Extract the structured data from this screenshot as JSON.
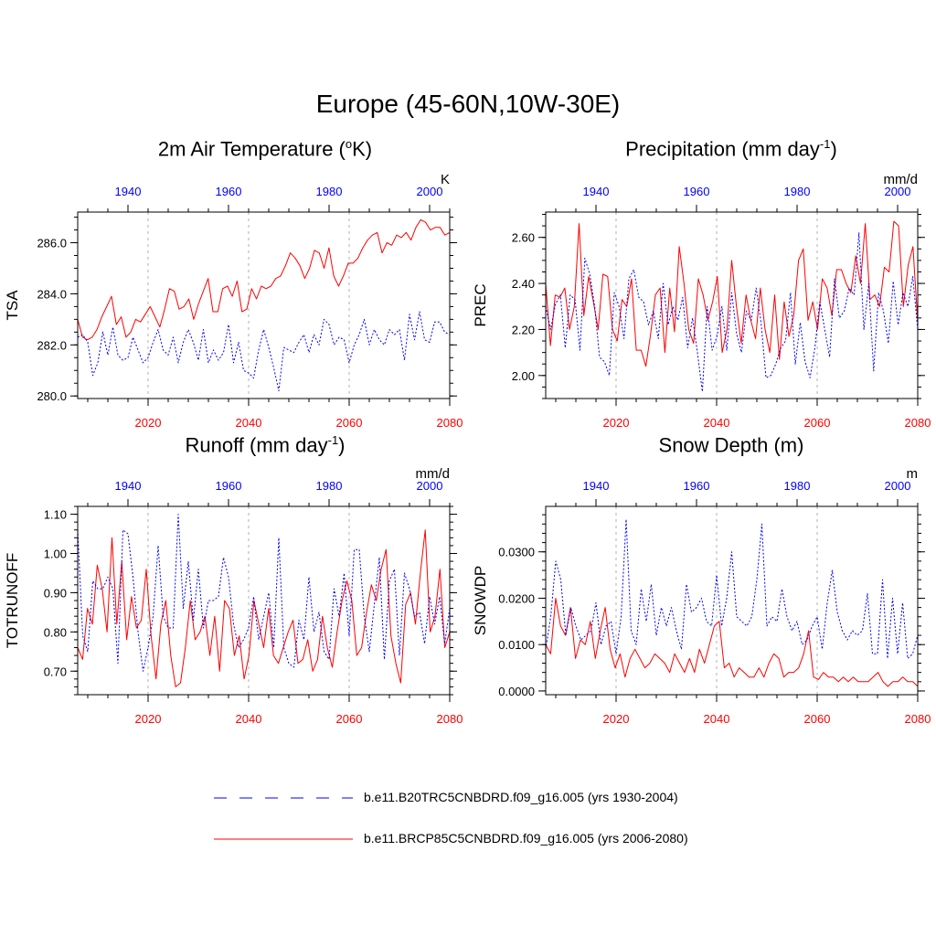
{
  "title": "Europe (45-60N,10W-30E)",
  "colors": {
    "historical": "#0000ff",
    "future": "#ff0000",
    "grid": "#b0b0b0"
  },
  "legend": [
    {
      "series": "historical",
      "label": "b.e11.B20TRC5CNBDRD.f09_g16.005 (yrs 1930-2004)"
    },
    {
      "series": "future",
      "label": "b.e11.BRCP85C5CNBDRD.f09_g16.005 (yrs 2006-2080)"
    }
  ],
  "chart_data": [
    {
      "type": "line",
      "id": "tsa",
      "title_main": "2m Air Temperature (",
      "title_sup": "o",
      "title_tail": "K)",
      "ylabel": "TSA",
      "units": "K",
      "ylim": [
        279.9,
        287.2
      ],
      "yticks": [
        280.0,
        282.0,
        284.0,
        286.0
      ],
      "ytick_labels": [
        "280.0",
        "282.0",
        "284.0",
        "286.0"
      ],
      "yminor": 0.5,
      "x_bottom": {
        "range": [
          2006,
          2080
        ],
        "ticks": [
          2020,
          2040,
          2060,
          2080
        ]
      },
      "x_top": {
        "range": [
          1930,
          2004
        ],
        "ticks": [
          1940,
          1960,
          1980,
          2000
        ]
      },
      "series": [
        {
          "name": "b.e11.BRCP85C5CNBDRD.f09_g16.005",
          "style": "future",
          "values": [
            283.0,
            282.3,
            282.2,
            282.3,
            282.6,
            283.1,
            283.5,
            283.9,
            282.8,
            283.1,
            282.3,
            282.5,
            283.0,
            282.9,
            283.2,
            283.5,
            283.1,
            282.7,
            283.4,
            284.2,
            284.1,
            283.4,
            283.5,
            283.8,
            283.0,
            283.6,
            284.1,
            284.6,
            283.3,
            283.3,
            284.2,
            284.3,
            283.9,
            284.5,
            283.3,
            283.4,
            284.2,
            283.8,
            284.3,
            284.2,
            284.3,
            284.6,
            284.7,
            285.1,
            285.6,
            285.4,
            285.1,
            284.6,
            285.0,
            285.7,
            285.6,
            285.0,
            285.8,
            284.7,
            284.3,
            284.7,
            285.2,
            285.2,
            285.4,
            285.8,
            286.1,
            286.3,
            286.4,
            285.6,
            286.0,
            285.9,
            286.3,
            286.2,
            286.4,
            286.1,
            286.6,
            286.9,
            286.8,
            286.5,
            286.6,
            286.6,
            286.3,
            286.4
          ]
        },
        {
          "name": "b.e11.B20TRC5CNBDRD.f09_g16.005",
          "style": "historical",
          "values": [
            282.3,
            282.4,
            282.1,
            280.8,
            281.3,
            282.5,
            281.6,
            282.7,
            281.6,
            281.4,
            281.5,
            282.3,
            281.8,
            281.3,
            281.5,
            282.1,
            282.6,
            281.8,
            281.6,
            282.3,
            281.3,
            282.1,
            282.6,
            282.1,
            281.4,
            282.6,
            281.3,
            281.8,
            281.4,
            281.7,
            282.8,
            281.3,
            282.1,
            281.0,
            280.9,
            280.7,
            281.8,
            282.6,
            281.9,
            281.1,
            280.2,
            281.9,
            281.8,
            281.7,
            282.1,
            282.4,
            281.7,
            282.4,
            282.0,
            283.0,
            282.8,
            282.0,
            282.3,
            282.2,
            281.3,
            282.0,
            282.4,
            283.0,
            282.0,
            282.6,
            282.2,
            282.0,
            282.6,
            282.4,
            282.6,
            281.4,
            283.2,
            282.2,
            283.3,
            282.2,
            282.1,
            282.9,
            282.9,
            282.5,
            282.4
          ]
        }
      ]
    },
    {
      "type": "line",
      "id": "prec",
      "title_main": "Precipitation (mm day",
      "title_sup": "-1",
      "title_tail": ")",
      "ylabel": "PREC",
      "units": "mm/d",
      "ylim": [
        1.9,
        2.71
      ],
      "yticks": [
        2.0,
        2.2,
        2.4,
        2.6
      ],
      "ytick_labels": [
        "2.00",
        "2.20",
        "2.40",
        "2.60"
      ],
      "yminor": 0.05,
      "x_bottom": {
        "range": [
          2006,
          2080
        ],
        "ticks": [
          2020,
          2040,
          2060,
          2080
        ]
      },
      "x_top": {
        "range": [
          1930,
          2004
        ],
        "ticks": [
          1940,
          1960,
          1980,
          2000
        ]
      },
      "series": [
        {
          "name": "b.e11.BRCP85C5CNBDRD.f09_g16.005",
          "style": "future",
          "values": [
            2.4,
            2.13,
            2.35,
            2.34,
            2.38,
            2.2,
            2.3,
            2.66,
            2.26,
            2.43,
            2.32,
            2.2,
            2.44,
            2.43,
            2.2,
            2.15,
            2.33,
            2.3,
            2.42,
            2.11,
            2.11,
            2.04,
            2.18,
            2.35,
            2.38,
            2.1,
            2.38,
            2.19,
            2.56,
            2.4,
            2.2,
            2.14,
            2.42,
            2.35,
            2.24,
            2.32,
            2.43,
            2.1,
            2.2,
            2.5,
            2.3,
            2.14,
            2.35,
            2.24,
            2.16,
            2.38,
            2.2,
            2.1,
            2.35,
            2.07,
            2.32,
            2.17,
            2.26,
            2.5,
            2.55,
            2.24,
            2.32,
            2.2,
            2.42,
            2.38,
            2.26,
            2.46,
            2.46,
            2.4,
            2.36,
            2.52,
            2.4,
            2.66,
            2.33,
            2.35,
            2.3,
            2.47,
            2.45,
            2.67,
            2.65,
            2.3,
            2.48,
            2.56,
            2.23
          ]
        },
        {
          "name": "b.e11.B20TRC5CNBDRD.f09_g16.005",
          "style": "historical",
          "values": [
            2.3,
            2.2,
            2.31,
            2.35,
            2.12,
            2.35,
            2.33,
            2.11,
            2.51,
            2.44,
            2.3,
            2.08,
            2.06,
            2.0,
            2.36,
            2.3,
            2.16,
            2.42,
            2.46,
            2.34,
            2.32,
            2.22,
            2.28,
            2.16,
            2.4,
            2.22,
            2.3,
            2.24,
            2.34,
            2.12,
            2.25,
            2.1,
            1.93,
            2.3,
            2.11,
            2.17,
            2.3,
            2.11,
            2.36,
            2.18,
            2.1,
            2.28,
            2.24,
            2.38,
            2.23,
            1.99,
            2.0,
            2.05,
            2.12,
            2.15,
            2.36,
            2.05,
            2.23,
            2.06,
            1.99,
            2.12,
            2.32,
            2.2,
            2.08,
            2.42,
            2.25,
            2.28,
            2.38,
            2.35,
            2.62,
            2.2,
            2.4,
            2.02,
            2.36,
            2.28,
            2.14,
            2.41,
            2.22,
            2.36,
            2.3,
            2.43,
            2.2
          ]
        }
      ]
    },
    {
      "type": "line",
      "id": "runoff",
      "title_main": "Runoff (mm day",
      "title_sup": "-1",
      "title_tail": ")",
      "ylabel": "TOTRUNOFF",
      "units": "mm/d",
      "ylim": [
        0.64,
        1.12
      ],
      "yticks": [
        0.7,
        0.8,
        0.9,
        1.0,
        1.1
      ],
      "ytick_labels": [
        "0.70",
        "0.80",
        "0.90",
        "1.00",
        "1.10"
      ],
      "yminor": 0.02,
      "x_bottom": {
        "range": [
          2006,
          2080
        ],
        "ticks": [
          2020,
          2040,
          2060,
          2080
        ]
      },
      "x_top": {
        "range": [
          1930,
          2004
        ],
        "ticks": [
          1940,
          1960,
          1980,
          2000
        ]
      },
      "series": [
        {
          "name": "b.e11.BRCP85C5CNBDRD.f09_g16.005",
          "style": "future",
          "values": [
            0.76,
            0.73,
            0.86,
            0.82,
            0.97,
            0.91,
            0.8,
            1.04,
            0.82,
            0.98,
            0.78,
            0.89,
            0.81,
            0.83,
            0.96,
            0.79,
            0.68,
            0.82,
            0.88,
            0.74,
            0.66,
            0.67,
            0.76,
            0.88,
            0.78,
            0.8,
            0.84,
            0.74,
            0.84,
            0.7,
            0.88,
            0.86,
            0.74,
            0.79,
            0.68,
            0.74,
            0.88,
            0.82,
            0.76,
            0.86,
            0.74,
            0.72,
            0.76,
            0.8,
            0.83,
            0.72,
            0.73,
            0.78,
            0.7,
            0.73,
            0.84,
            0.76,
            0.71,
            0.8,
            0.88,
            0.93,
            0.88,
            0.74,
            0.76,
            0.85,
            0.92,
            0.88,
            0.96,
            1.01,
            0.79,
            0.72,
            0.67,
            0.87,
            0.9,
            0.82,
            0.95,
            1.06,
            0.8,
            0.84,
            0.96,
            0.76,
            0.8
          ]
        },
        {
          "name": "b.e11.B20TRC5CNBDRD.f09_g16.005",
          "style": "historical",
          "values": [
            1.06,
            0.79,
            0.75,
            0.93,
            0.91,
            0.91,
            0.94,
            0.91,
            0.72,
            1.06,
            1.05,
            0.94,
            0.8,
            0.7,
            0.76,
            0.84,
            1.02,
            0.84,
            0.81,
            0.81,
            1.1,
            0.86,
            0.98,
            0.83,
            0.96,
            0.81,
            0.88,
            0.88,
            0.89,
            0.99,
            0.94,
            0.82,
            0.76,
            0.78,
            0.81,
            0.89,
            0.78,
            0.84,
            0.9,
            0.76,
            1.04,
            0.76,
            0.72,
            0.71,
            0.83,
            0.78,
            0.94,
            0.8,
            0.85,
            0.75,
            0.73,
            0.91,
            0.84,
            0.95,
            0.79,
            1.01,
            1.01,
            0.84,
            0.75,
            0.87,
            0.99,
            0.73,
            0.93,
            0.96,
            0.74,
            0.95,
            0.91,
            0.84,
            0.85,
            0.77,
            0.89,
            0.82,
            0.89,
            0.77,
            0.86
          ]
        }
      ]
    },
    {
      "type": "line",
      "id": "snow",
      "title_main": "Snow Depth (m)",
      "title_sup": "",
      "title_tail": "",
      "ylabel": "SNOWDP",
      "units": "m",
      "ylim": [
        -0.0008,
        0.0398
      ],
      "yticks": [
        0.0,
        0.01,
        0.02,
        0.03
      ],
      "ytick_labels": [
        "0.0000",
        "0.0100",
        "0.0200",
        "0.0300"
      ],
      "yminor": 0.002,
      "x_bottom": {
        "range": [
          2006,
          2080
        ],
        "ticks": [
          2020,
          2040,
          2060,
          2080
        ]
      },
      "x_top": {
        "range": [
          1930,
          2004
        ],
        "ticks": [
          1940,
          1960,
          1980,
          2000
        ]
      },
      "series": [
        {
          "name": "b.e11.BRCP85C5CNBDRD.f09_g16.005",
          "style": "future",
          "values": [
            0.01,
            0.008,
            0.02,
            0.014,
            0.012,
            0.018,
            0.007,
            0.011,
            0.01,
            0.015,
            0.007,
            0.013,
            0.018,
            0.009,
            0.005,
            0.008,
            0.003,
            0.007,
            0.009,
            0.007,
            0.005,
            0.006,
            0.008,
            0.007,
            0.006,
            0.004,
            0.008,
            0.006,
            0.004,
            0.007,
            0.004,
            0.009,
            0.006,
            0.01,
            0.014,
            0.015,
            0.005,
            0.006,
            0.003,
            0.005,
            0.004,
            0.003,
            0.003,
            0.005,
            0.003,
            0.006,
            0.008,
            0.007,
            0.003,
            0.004,
            0.004,
            0.005,
            0.008,
            0.013,
            0.003,
            0.0025,
            0.004,
            0.003,
            0.003,
            0.002,
            0.003,
            0.002,
            0.003,
            0.002,
            0.002,
            0.002,
            0.003,
            0.004,
            0.002,
            0.001,
            0.002,
            0.002,
            0.003,
            0.002,
            0.002,
            0.001
          ]
        },
        {
          "name": "b.e11.B20TRC5CNBDRD.f09_g16.005",
          "style": "historical",
          "values": [
            0.009,
            0.016,
            0.028,
            0.024,
            0.012,
            0.018,
            0.014,
            0.011,
            0.012,
            0.013,
            0.019,
            0.01,
            0.014,
            0.015,
            0.008,
            0.016,
            0.037,
            0.013,
            0.01,
            0.022,
            0.015,
            0.023,
            0.012,
            0.018,
            0.014,
            0.018,
            0.013,
            0.009,
            0.023,
            0.017,
            0.018,
            0.02,
            0.015,
            0.014,
            0.025,
            0.014,
            0.02,
            0.03,
            0.016,
            0.015,
            0.014,
            0.016,
            0.024,
            0.036,
            0.014,
            0.016,
            0.015,
            0.022,
            0.016,
            0.013,
            0.015,
            0.01,
            0.011,
            0.014,
            0.016,
            0.009,
            0.019,
            0.026,
            0.017,
            0.013,
            0.011,
            0.013,
            0.012,
            0.013,
            0.021,
            0.008,
            0.008,
            0.024,
            0.007,
            0.02,
            0.008,
            0.019,
            0.007,
            0.008,
            0.012
          ]
        }
      ]
    }
  ]
}
